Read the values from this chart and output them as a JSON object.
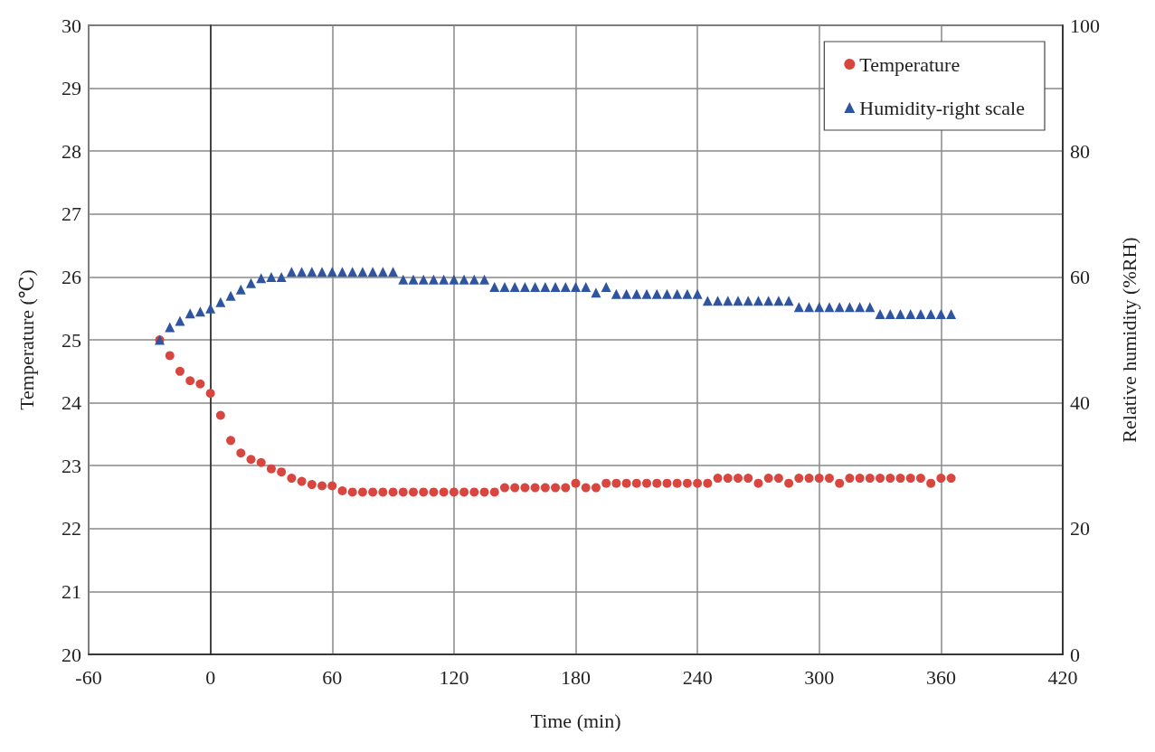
{
  "chart_data": {
    "type": "scatter",
    "xlabel": "Time (min)",
    "ylabel": "Temperature (℃)",
    "y2label": "Relative humidity (%RH)",
    "xlim": [
      -60,
      420
    ],
    "xticks": [
      -60,
      0,
      60,
      120,
      180,
      240,
      300,
      360,
      420
    ],
    "ylim": [
      20,
      30
    ],
    "yticks": [
      20,
      21,
      22,
      23,
      24,
      25,
      26,
      27,
      28,
      29,
      30
    ],
    "y2lim": [
      0,
      100
    ],
    "y2ticks": [
      0,
      20,
      40,
      60,
      80,
      100
    ],
    "grid": true,
    "legend": "top right",
    "x": [
      -25,
      -20,
      -15,
      -10,
      -5,
      0,
      5,
      10,
      15,
      20,
      25,
      30,
      35,
      40,
      45,
      50,
      55,
      60,
      65,
      70,
      75,
      80,
      85,
      90,
      95,
      100,
      105,
      110,
      115,
      120,
      125,
      130,
      135,
      140,
      145,
      150,
      155,
      160,
      165,
      170,
      175,
      180,
      185,
      190,
      195,
      200,
      205,
      210,
      215,
      220,
      225,
      230,
      235,
      240,
      245,
      250,
      255,
      260,
      265,
      270,
      275,
      280,
      285,
      290,
      295,
      300,
      305,
      310,
      315,
      320,
      325,
      330,
      335,
      340,
      345,
      350,
      355,
      360,
      365
    ],
    "series": [
      {
        "name": "Temperature",
        "color": "#d9463f",
        "marker": "circle",
        "values": [
          25.0,
          24.75,
          24.5,
          24.35,
          24.3,
          24.15,
          23.8,
          23.4,
          23.2,
          23.1,
          23.05,
          22.95,
          22.9,
          22.8,
          22.75,
          22.7,
          22.68,
          22.68,
          22.6,
          22.58,
          22.58,
          22.58,
          22.58,
          22.58,
          22.58,
          22.58,
          22.58,
          22.58,
          22.58,
          22.58,
          22.58,
          22.58,
          22.58,
          22.58,
          22.65,
          22.65,
          22.65,
          22.65,
          22.65,
          22.65,
          22.65,
          22.72,
          22.65,
          22.65,
          22.72,
          22.72,
          22.72,
          22.72,
          22.72,
          22.72,
          22.72,
          22.72,
          22.72,
          22.72,
          22.72,
          22.8,
          22.8,
          22.8,
          22.8,
          22.72,
          22.8,
          22.8,
          22.72,
          22.8,
          22.8,
          22.8,
          22.8,
          22.72,
          22.8,
          22.8,
          22.8,
          22.8,
          22.8,
          22.8,
          22.8,
          22.8,
          22.72,
          22.8,
          22.8
        ]
      },
      {
        "name": "Humidity-right scale",
        "color": "#2f55a0",
        "marker": "triangle",
        "axis": "y2",
        "values": [
          50,
          52,
          53,
          54.2,
          54.5,
          55,
          56,
          57,
          58,
          59,
          59.8,
          60,
          60,
          60.8,
          60.8,
          60.8,
          60.8,
          60.8,
          60.8,
          60.8,
          60.8,
          60.8,
          60.8,
          60.8,
          59.6,
          59.6,
          59.6,
          59.6,
          59.6,
          59.6,
          59.6,
          59.6,
          59.6,
          58.4,
          58.4,
          58.4,
          58.4,
          58.4,
          58.4,
          58.4,
          58.4,
          58.4,
          58.4,
          57.5,
          58.4,
          57.3,
          57.3,
          57.3,
          57.3,
          57.3,
          57.3,
          57.3,
          57.3,
          57.3,
          56.2,
          56.2,
          56.2,
          56.2,
          56.2,
          56.2,
          56.2,
          56.2,
          56.2,
          55.2,
          55.2,
          55.2,
          55.2,
          55.2,
          55.2,
          55.2,
          55.2,
          54.1,
          54.1,
          54.1,
          54.1,
          54.1,
          54.1,
          54.1,
          54.1
        ]
      }
    ]
  }
}
